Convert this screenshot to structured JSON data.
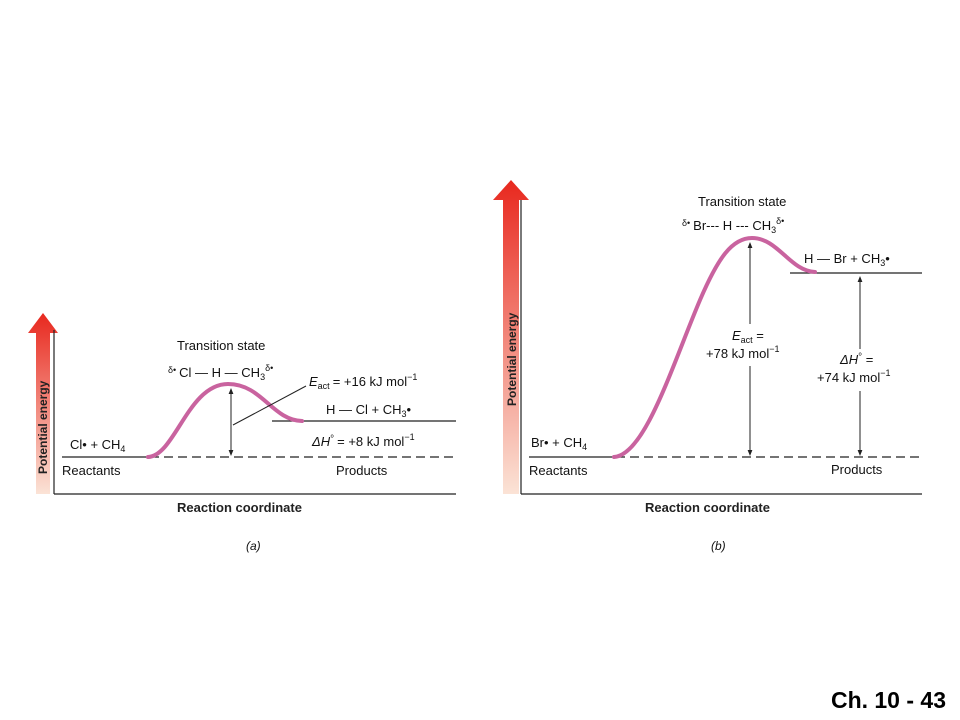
{
  "footer": "Ch. 10 - 43",
  "diagrams": [
    {
      "panel_label": "(a)",
      "x_axis_label": "Reaction coordinate",
      "y_axis_label": "Potential energy",
      "reactants_species": "Cl• + CH",
      "reactants_sub": "4",
      "reactants_label": "Reactants",
      "products_species": "H — Cl + CH",
      "products_sub": "3",
      "products_dot": "•",
      "products_label": "Products",
      "ts_label": "Transition state",
      "ts_formula": {
        "delta_left": "δ•",
        "main": "Cl — H — CH",
        "sub": "3",
        "delta_right": "δ•"
      },
      "eact": {
        "symbol": "E",
        "sub": "act",
        "value": "= +16 kJ mol",
        "exp": "−1"
      },
      "dh": {
        "prefix": "ΔH",
        "deg": "°",
        "value": "= +8 kJ mol",
        "exp": "−1"
      }
    },
    {
      "panel_label": "(b)",
      "x_axis_label": "Reaction coordinate",
      "y_axis_label": "Potential energy",
      "reactants_species": "Br• + CH",
      "reactants_sub": "4",
      "reactants_label": "Reactants",
      "products_species": "H — Br + CH",
      "products_sub": "3",
      "products_dot": "•",
      "products_label": "Products",
      "ts_label": "Transition state",
      "ts_formula": {
        "delta_left": "δ•",
        "main": "Br--- H --- CH",
        "sub": "3",
        "delta_right": "δ•"
      },
      "eact": {
        "symbol": "E",
        "sub": "act",
        "eq": " =",
        "value": "+78 kJ mol",
        "exp": "−1"
      },
      "dh": {
        "prefix": "ΔH",
        "deg": "°",
        "eq": " =",
        "value": "+74 kJ mol",
        "exp": "−1"
      }
    }
  ],
  "colors": {
    "curve": "#c9639f",
    "arrow_top": "#e8281e",
    "arrow_bottom": "#f6c8b2",
    "line": "#222222"
  }
}
